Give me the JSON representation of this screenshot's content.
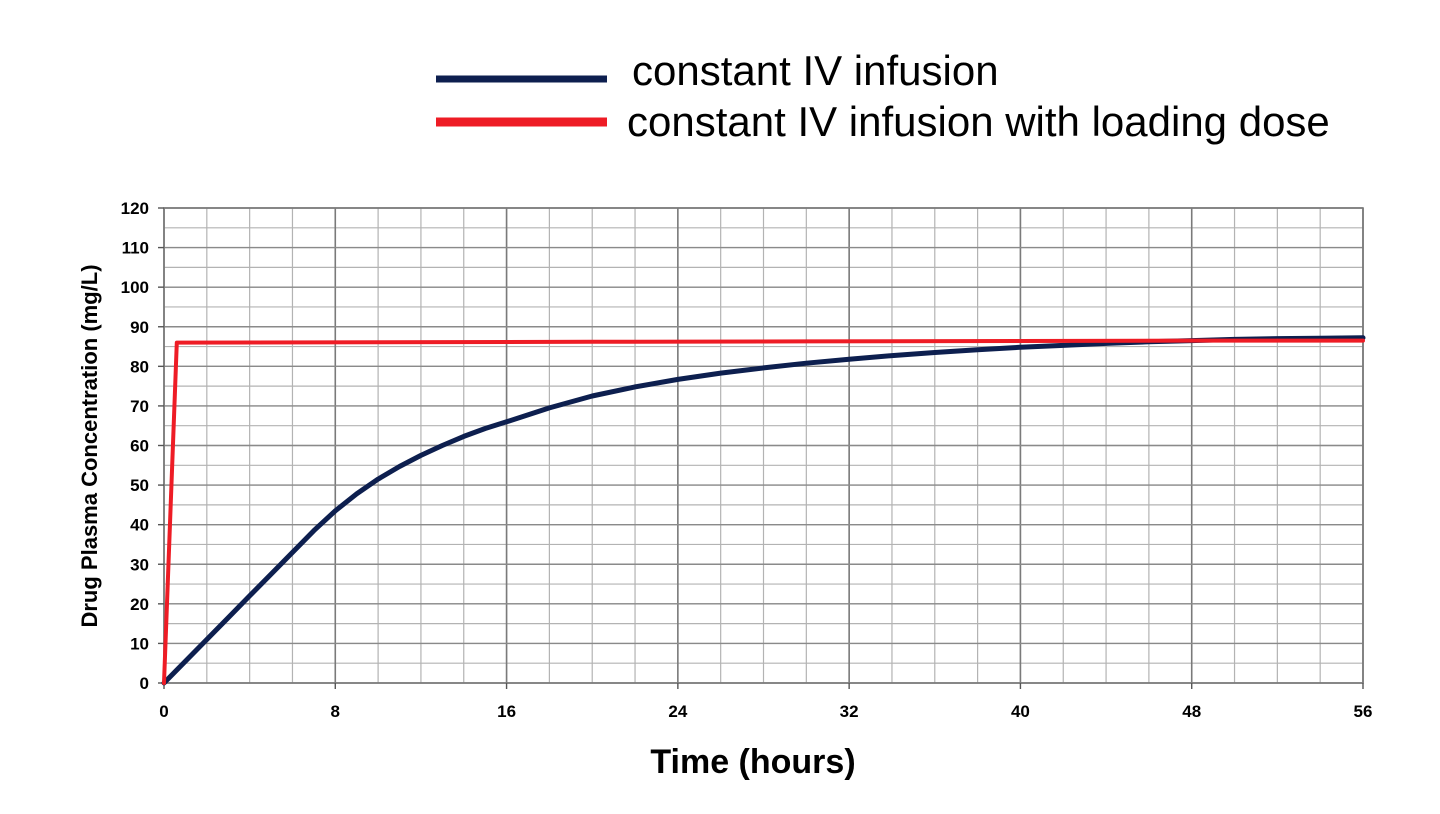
{
  "chart_data": {
    "type": "line",
    "title": "",
    "xlabel": "Time (hours)",
    "ylabel": "Drug Plasma Concentration (mg/L)",
    "xlim": [
      0,
      56
    ],
    "ylim": [
      0,
      120
    ],
    "x_ticks": [
      0,
      8,
      16,
      24,
      32,
      40,
      48,
      56
    ],
    "x_tick_labels": [
      "0",
      "8",
      "16",
      "24",
      "32",
      "40",
      "48",
      "56"
    ],
    "x_minor_step": 2,
    "y_ticks": [
      0,
      10,
      20,
      30,
      40,
      50,
      60,
      70,
      80,
      90,
      100,
      110,
      120
    ],
    "y_tick_labels": [
      "0",
      "10",
      "20",
      "30",
      "40",
      "50",
      "60",
      "70",
      "80",
      "90",
      "100",
      "110",
      "120"
    ],
    "y_minor_step": 5,
    "grid": true,
    "legend_position": "top",
    "series": [
      {
        "name": "constant IV infusion",
        "color": "#0d1f4f",
        "x": [
          0,
          1,
          2,
          3,
          4,
          5,
          6,
          7,
          8,
          9,
          10,
          11,
          12,
          13,
          14,
          15,
          16,
          18,
          20,
          22,
          24,
          26,
          28,
          30,
          32,
          34,
          36,
          38,
          40,
          42,
          44,
          46,
          48,
          50,
          52,
          54,
          56
        ],
        "y": [
          0,
          5.5,
          11,
          16.5,
          22,
          27.5,
          33,
          38.5,
          43.5,
          47.8,
          51.5,
          54.7,
          57.5,
          60,
          62.3,
          64.3,
          66,
          69.5,
          72.5,
          74.8,
          76.7,
          78.3,
          79.6,
          80.8,
          81.8,
          82.7,
          83.5,
          84.2,
          84.8,
          85.3,
          85.8,
          86.2,
          86.5,
          86.8,
          87,
          87.1,
          87.2
        ]
      },
      {
        "name": "constant IV infusion with loading dose",
        "color": "#ee1c25",
        "x": [
          0,
          0.6,
          10,
          20,
          30,
          40,
          48,
          56
        ],
        "y": [
          0,
          86,
          86.1,
          86.2,
          86.3,
          86.4,
          86.5,
          86.5
        ]
      }
    ]
  }
}
